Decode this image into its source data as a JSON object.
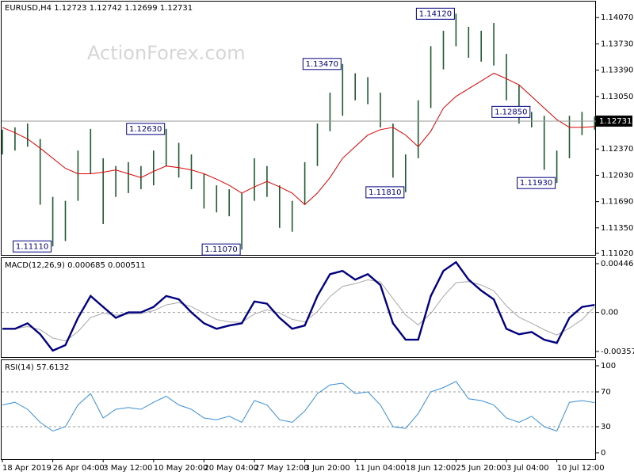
{
  "chart_data": [
    {
      "type": "ohlc",
      "title": "EURUSD,H4  1.12723 1.12742 1.12699 1.12731",
      "watermark": "ActionForex.com",
      "color": "#1f5a2e",
      "categories": [
        "18 Apr 2019",
        null,
        null,
        null,
        "26 Apr 04:00",
        null,
        null,
        null,
        "3 May 12:00",
        null,
        null,
        null,
        "10 May 20:00",
        null,
        null,
        null,
        "20 May 04:00",
        null,
        null,
        null,
        "27 May 12:00",
        null,
        null,
        null,
        "3 Jun 20:00",
        null,
        null,
        null,
        "11 Jun 04:00",
        null,
        null,
        null,
        "18 Jun 12:00",
        null,
        null,
        null,
        "25 Jun 20:00",
        null,
        null,
        null,
        "3 Jul 04:00",
        null,
        null,
        null,
        "10 Jul 12:00",
        null,
        null,
        null
      ],
      "high": [
        1.1262,
        1.1265,
        1.127,
        1.125,
        1.1175,
        1.117,
        1.1235,
        1.1263,
        1.1225,
        1.1215,
        1.122,
        1.1215,
        1.1235,
        1.1263,
        1.1245,
        1.123,
        1.1205,
        1.119,
        1.1185,
        1.118,
        1.1225,
        1.1215,
        1.119,
        1.117,
        1.122,
        1.127,
        1.131,
        1.1347,
        1.1335,
        1.133,
        1.131,
        1.127,
        1.123,
        1.13,
        1.137,
        1.139,
        1.1412,
        1.1395,
        1.139,
        1.14,
        1.136,
        1.132,
        1.1285,
        1.128,
        1.1235,
        1.128,
        1.1285,
        1.1279
      ],
      "low": [
        1.123,
        1.1235,
        1.124,
        1.1165,
        1.1111,
        1.1118,
        1.117,
        1.1205,
        1.114,
        1.1175,
        1.118,
        1.1185,
        1.119,
        1.1215,
        1.12,
        1.1185,
        1.116,
        1.1155,
        1.115,
        1.1107,
        1.117,
        1.1175,
        1.1135,
        1.113,
        1.1165,
        1.1215,
        1.126,
        1.128,
        1.13,
        1.1295,
        1.1265,
        1.12,
        1.1181,
        1.1225,
        1.129,
        1.134,
        1.137,
        1.1355,
        1.135,
        1.1345,
        1.13,
        1.127,
        1.1265,
        1.121,
        1.1193,
        1.1225,
        1.1255,
        1.1262
      ],
      "ma": {
        "color": "#e00000",
        "values": [
          1.1265,
          1.1258,
          1.125,
          1.1238,
          1.1225,
          1.1212,
          1.1205,
          1.1205,
          1.1207,
          1.121,
          1.1205,
          1.12,
          1.1208,
          1.1215,
          1.1213,
          1.121,
          1.1205,
          1.1198,
          1.119,
          1.118,
          1.1188,
          1.1195,
          1.1188,
          1.118,
          1.1165,
          1.118,
          1.12,
          1.1225,
          1.124,
          1.1255,
          1.1262,
          1.1265,
          1.1255,
          1.124,
          1.126,
          1.129,
          1.1305,
          1.1315,
          1.1325,
          1.1335,
          1.1328,
          1.132,
          1.1305,
          1.129,
          1.1275,
          1.1265,
          1.1265,
          1.1266
        ]
      },
      "ylim": [
        1.11,
        1.14277
      ],
      "yticks": [
        {
          "value": 1.1407,
          "label": "1.14070"
        },
        {
          "value": 1.1373,
          "label": "1.13730"
        },
        {
          "value": 1.1339,
          "label": "1.13390"
        },
        {
          "value": 1.1305,
          "label": "1.13050"
        },
        {
          "value": 1.1237,
          "label": "1.12370"
        },
        {
          "value": 1.1203,
          "label": "1.12030"
        },
        {
          "value": 1.1169,
          "label": "1.11690"
        },
        {
          "value": 1.1135,
          "label": "1.11350"
        },
        {
          "value": 1.1102,
          "label": "1.11020"
        }
      ],
      "current": {
        "value": 1.12731,
        "label": "1.12731"
      },
      "annotations": [
        {
          "label": "1.14120",
          "value": 1.1412,
          "index": 36
        },
        {
          "label": "1.13470",
          "value": 1.1347,
          "index": 27
        },
        {
          "label": "1.12630",
          "value": 1.1263,
          "index": 13
        },
        {
          "label": "1.12850",
          "value": 1.1285,
          "index": 42
        },
        {
          "label": "1.11810",
          "value": 1.1181,
          "index": 32
        },
        {
          "label": "1.11930",
          "value": 1.1193,
          "index": 44
        },
        {
          "label": "1.11110",
          "value": 1.1111,
          "index": 4
        },
        {
          "label": "1.11070",
          "value": 1.1107,
          "index": 19
        }
      ]
    },
    {
      "type": "macd",
      "title": "MACD(12,26,9) 0.000685 0.000511",
      "series": [
        {
          "color": "#000080",
          "values": [
            -0.0015,
            -0.0015,
            -0.001,
            -0.002,
            -0.0035,
            -0.003,
            -0.0005,
            0.0015,
            0.0005,
            -0.0005,
            0.0,
            0.0,
            0.0005,
            0.0015,
            0.0012,
            0.0,
            -0.001,
            -0.0015,
            -0.0012,
            -0.001,
            0.001,
            0.0008,
            -0.0005,
            -0.0015,
            -0.0012,
            0.0015,
            0.0035,
            0.0038,
            0.003,
            0.0035,
            0.0025,
            -0.001,
            -0.0025,
            -0.0025,
            0.0015,
            0.0038,
            0.0046,
            0.003,
            0.002,
            0.0012,
            -0.0015,
            -0.002,
            -0.0018,
            -0.0025,
            -0.0028,
            -0.0005,
            0.0005,
            0.000685
          ]
        },
        {
          "color": "#a8a8a8",
          "values": [
            -0.0015,
            -0.0015,
            -0.0013,
            -0.00158,
            -0.00235,
            -0.00261,
            -0.00177,
            -0.00046,
            -8e-05,
            -0.00025,
            -0.00015,
            -9e-05,
            0.00015,
            0.00069,
            0.00089,
            0.00053,
            -8e-05,
            -0.00065,
            -0.00087,
            -0.00092,
            -0.00015,
            0.00023,
            -6e-05,
            -0.00064,
            -0.00086,
            8e-05,
            0.00145,
            0.00239,
            0.00263,
            0.00298,
            0.00279,
            0.00127,
            -0.00024,
            -0.00114,
            -9e-05,
            0.00147,
            0.00272,
            0.00283,
            0.0025,
            0.00198,
            0.00059,
            -0.00045,
            -0.00099,
            -0.00159,
            -0.00207,
            -0.00144,
            -0.00066,
            0.000511
          ]
        }
      ],
      "ylim": [
        -0.004088,
        0.004975
      ],
      "yticks": [
        0.004463,
        {
          "value": 0,
          "label": "0.00"
        },
        -0.003576
      ]
    },
    {
      "type": "line",
      "title": "RSI(14) 57.6132",
      "color": "#3a8fd8",
      "values": [
        55,
        58,
        50,
        35,
        25,
        30,
        55,
        68,
        40,
        50,
        52,
        50,
        58,
        65,
        55,
        50,
        40,
        38,
        42,
        35,
        60,
        55,
        38,
        35,
        48,
        68,
        78,
        80,
        68,
        70,
        55,
        30,
        28,
        45,
        70,
        75,
        82,
        62,
        60,
        55,
        40,
        35,
        42,
        30,
        25,
        58,
        60,
        57.6132
      ],
      "ylim": [
        -7.3,
        106.4
      ],
      "yticks": [
        100,
        70,
        30,
        0
      ]
    }
  ]
}
